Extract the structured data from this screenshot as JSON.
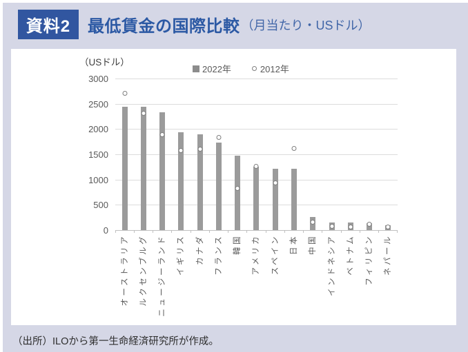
{
  "header": {
    "badge": "資料2",
    "title": "最低賃金の国際比較",
    "title_note": "（月当たり・USドル）"
  },
  "footer": {
    "source": "（出所）ILOから第一生命経済研究所が作成。"
  },
  "colors": {
    "card_background": "#d5d7e6",
    "badge_blue": "#3156a0",
    "title_blue": "#2c59a4",
    "bar_gray": "#9b9b9b",
    "marker_stroke": "#7f7f7f",
    "axis_text_gray": "#595959",
    "gridline_gray": "#dcdcdc"
  },
  "chart_data": {
    "type": "bar",
    "title": "最低賃金の国際比較（月当たり・USドル）",
    "unit_label": "（USドル）",
    "xlabel": "",
    "ylabel": "USドル",
    "ylim": [
      0,
      3000
    ],
    "yticks": [
      0,
      500,
      1000,
      1500,
      2000,
      2500,
      3000
    ],
    "grid": true,
    "legend_position": "top",
    "legend": [
      {
        "name": "2022年",
        "marker": "square"
      },
      {
        "name": "2012年",
        "marker": "circle"
      }
    ],
    "categories": [
      "オーストラリア",
      "ルクセンブルグ",
      "ニュージーランド",
      "イギリス",
      "カナダ",
      "フランス",
      "韓国",
      "アメリカ",
      "スペイン",
      "日本",
      "中国",
      "インドネシア",
      "ベトナム",
      "フィリピン",
      "ネパール"
    ],
    "series": [
      {
        "name": "2022年",
        "type": "bar",
        "values": [
          2440,
          2440,
          2330,
          1930,
          1890,
          1730,
          1470,
          1250,
          1210,
          1210,
          260,
          150,
          150,
          135,
          95
        ]
      },
      {
        "name": "2012年",
        "type": "scatter",
        "values": [
          2710,
          2310,
          1890,
          1575,
          1600,
          1835,
          830,
          1255,
          940,
          1615,
          160,
          80,
          55,
          120,
          55
        ]
      }
    ]
  }
}
